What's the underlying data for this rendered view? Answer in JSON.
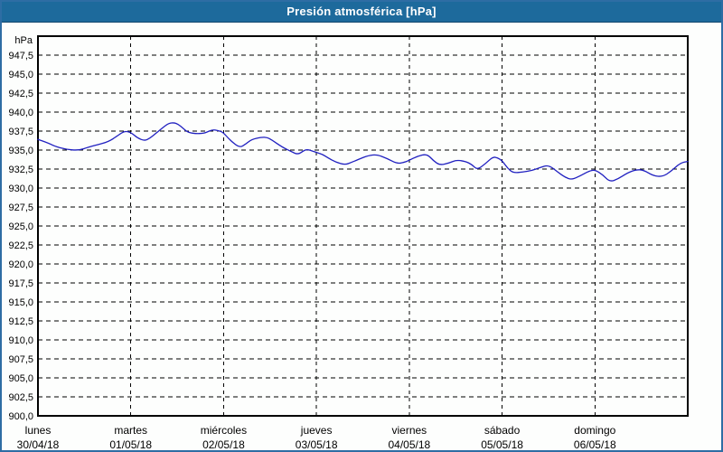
{
  "window": {
    "title": "Presión atmosférica [hPa]"
  },
  "colors": {
    "titlebar_bg": "#1d6a9c",
    "titlebar_text": "#ffffff",
    "frame_border": "#2e6da4",
    "background": "#fdfefd",
    "plot_border": "#000000",
    "gridline": "#000000",
    "series_line": "#2020c0",
    "label_text": "#000000"
  },
  "chart_data": {
    "type": "line",
    "title": "Presión atmosférica [hPa]",
    "ylabel_unit": "hPa",
    "ylim": [
      900,
      950
    ],
    "ytick_step": 2.5,
    "ytick_labels": [
      "947,5",
      "945,0",
      "942,5",
      "940,0",
      "937,5",
      "935,0",
      "932,5",
      "930,0",
      "927,5",
      "925,0",
      "922,5",
      "920,0",
      "917,5",
      "915,0",
      "912,5",
      "910,0",
      "907,5",
      "905,0",
      "902,5",
      "900,0"
    ],
    "xlim_days": [
      0,
      7
    ],
    "grid": "dashed",
    "legend": "none",
    "x_day_labels": [
      {
        "name": "lunes",
        "date": "30/04/18"
      },
      {
        "name": "martes",
        "date": "01/05/18"
      },
      {
        "name": "miércoles",
        "date": "02/05/18"
      },
      {
        "name": "jueves",
        "date": "03/05/18"
      },
      {
        "name": "viernes",
        "date": "04/05/18"
      },
      {
        "name": "sábado",
        "date": "05/05/18"
      },
      {
        "name": "domingo",
        "date": "06/05/18"
      }
    ],
    "series": [
      {
        "name": "Presión atmosférica",
        "color": "#2020c0",
        "points": [
          [
            0,
            936.4
          ],
          [
            0.1,
            936.0
          ],
          [
            0.18,
            935.5
          ],
          [
            0.3,
            935.1
          ],
          [
            0.44,
            934.95
          ],
          [
            0.55,
            935.4
          ],
          [
            0.61,
            935.6
          ],
          [
            0.76,
            936.1
          ],
          [
            0.86,
            936.9
          ],
          [
            0.93,
            937.5
          ],
          [
            1.0,
            937.35
          ],
          [
            1.07,
            936.6
          ],
          [
            1.15,
            936.2
          ],
          [
            1.21,
            936.6
          ],
          [
            1.27,
            937.2
          ],
          [
            1.34,
            937.9
          ],
          [
            1.41,
            938.55
          ],
          [
            1.47,
            938.6
          ],
          [
            1.51,
            938.4
          ],
          [
            1.56,
            937.9
          ],
          [
            1.62,
            937.3
          ],
          [
            1.71,
            937.15
          ],
          [
            1.77,
            937.2
          ],
          [
            1.81,
            937.3
          ],
          [
            1.88,
            937.7
          ],
          [
            1.94,
            937.55
          ],
          [
            1.99,
            937.4
          ],
          [
            2.07,
            936.3
          ],
          [
            2.17,
            935.3
          ],
          [
            2.24,
            935.8
          ],
          [
            2.3,
            936.4
          ],
          [
            2.41,
            936.7
          ],
          [
            2.47,
            936.65
          ],
          [
            2.51,
            936.4
          ],
          [
            2.63,
            935.4
          ],
          [
            2.73,
            934.8
          ],
          [
            2.8,
            934.4
          ],
          [
            2.86,
            934.9
          ],
          [
            2.9,
            935.1
          ],
          [
            2.95,
            934.9
          ],
          [
            3.0,
            934.7
          ],
          [
            3.07,
            934.4
          ],
          [
            3.12,
            934.0
          ],
          [
            3.21,
            933.4
          ],
          [
            3.31,
            933.05
          ],
          [
            3.38,
            933.4
          ],
          [
            3.44,
            933.7
          ],
          [
            3.56,
            934.3
          ],
          [
            3.65,
            934.4
          ],
          [
            3.76,
            933.9
          ],
          [
            3.87,
            933.2
          ],
          [
            3.95,
            933.4
          ],
          [
            3.99,
            933.6
          ],
          [
            4.09,
            934.2
          ],
          [
            4.19,
            934.5
          ],
          [
            4.26,
            933.6
          ],
          [
            4.33,
            933.0
          ],
          [
            4.43,
            933.3
          ],
          [
            4.51,
            933.7
          ],
          [
            4.61,
            933.5
          ],
          [
            4.68,
            933.05
          ],
          [
            4.73,
            932.4
          ],
          [
            4.82,
            933.2
          ],
          [
            4.9,
            934.1
          ],
          [
            4.95,
            934.0
          ],
          [
            5.0,
            933.6
          ],
          [
            5.06,
            932.6
          ],
          [
            5.12,
            932.0
          ],
          [
            5.22,
            932.1
          ],
          [
            5.32,
            932.3
          ],
          [
            5.41,
            932.7
          ],
          [
            5.5,
            933.05
          ],
          [
            5.6,
            932.1
          ],
          [
            5.68,
            931.4
          ],
          [
            5.75,
            931.1
          ],
          [
            5.84,
            931.6
          ],
          [
            5.94,
            932.25
          ],
          [
            6.0,
            932.4
          ],
          [
            6.08,
            931.8
          ],
          [
            6.16,
            930.8
          ],
          [
            6.25,
            931.2
          ],
          [
            6.35,
            932.0
          ],
          [
            6.44,
            932.4
          ],
          [
            6.52,
            932.4
          ],
          [
            6.63,
            931.6
          ],
          [
            6.73,
            931.5
          ],
          [
            6.82,
            932.2
          ],
          [
            6.92,
            933.3
          ],
          [
            7.0,
            933.5
          ]
        ]
      }
    ]
  }
}
